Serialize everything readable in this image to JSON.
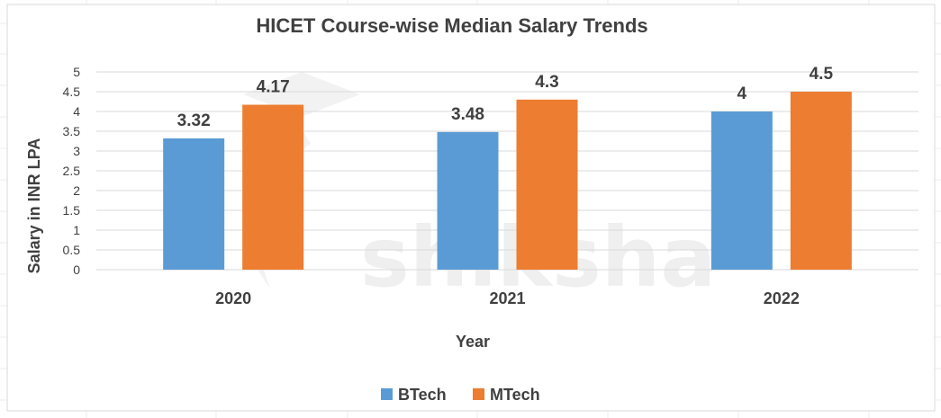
{
  "chart_data": {
    "type": "bar",
    "title": "HICET Course-wise Median Salary Trends",
    "xlabel": "Year",
    "ylabel": "Salary in INR LPA",
    "categories": [
      "2020",
      "2021",
      "2022"
    ],
    "series": [
      {
        "name": "BTech",
        "values": [
          3.32,
          3.48,
          4
        ],
        "labels": [
          "3.32",
          "3.48",
          "4"
        ],
        "color": "#5B9BD5"
      },
      {
        "name": "MTech",
        "values": [
          4.17,
          4.3,
          4.5
        ],
        "labels": [
          "4.17",
          "4.3",
          "4.5"
        ],
        "color": "#ED7D31"
      }
    ],
    "ylim": [
      0,
      5
    ],
    "yticks": [
      "0",
      "0.5",
      "1",
      "1.5",
      "2",
      "2.5",
      "3",
      "3.5",
      "4",
      "4.5",
      "5"
    ],
    "grid": true,
    "legend": "bottom",
    "gridline_color": "#D9D9D9",
    "text_color": "#404040"
  },
  "watermark": "shiksha"
}
